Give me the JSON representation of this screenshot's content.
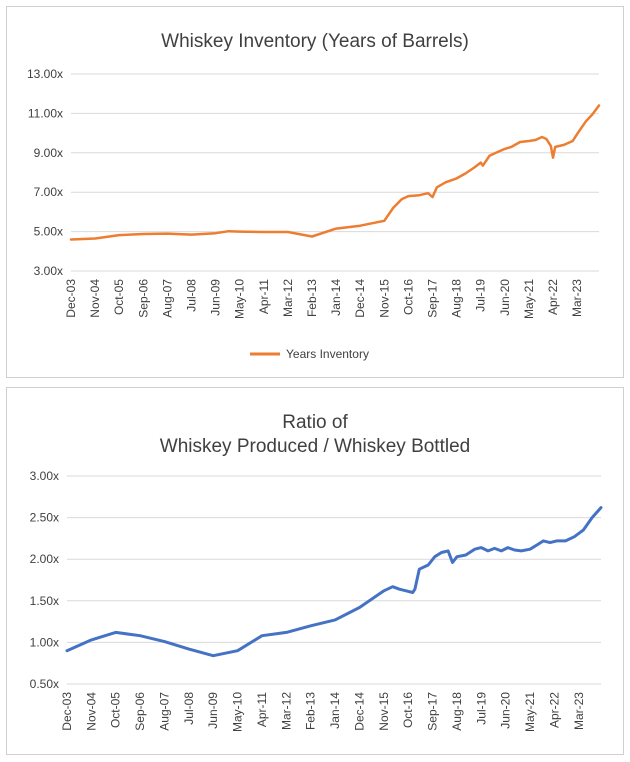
{
  "chart_data": [
    {
      "type": "line",
      "title": "Whiskey Inventory (Years of Barrels)",
      "xlabel": "",
      "ylabel": "",
      "ylim": [
        3.0,
        13.0
      ],
      "yticks": [
        "3.00x",
        "5.00x",
        "7.00x",
        "9.00x",
        "11.00x",
        "13.00x"
      ],
      "yvalues": [
        3,
        5,
        7,
        9,
        11,
        13
      ],
      "x_ticks": [
        "Dec-03",
        "Nov-04",
        "Oct-05",
        "Sep-06",
        "Aug-07",
        "Jul-08",
        "Jun-09",
        "May-10",
        "Apr-11",
        "Mar-12",
        "Feb-13",
        "Jan-14",
        "Dec-14",
        "Nov-15",
        "Oct-16",
        "Sep-17",
        "Aug-18",
        "Jul-19",
        "Jun-20",
        "May-21",
        "Apr-22",
        "Mar-23"
      ],
      "grid": true,
      "legend_position": "bottom",
      "color": "#ED7D31",
      "series": [
        {
          "name": "Years Inventory",
          "points": [
            [
              "2003-12",
              4.6
            ],
            [
              "2004-11",
              4.65
            ],
            [
              "2005-10",
              4.82
            ],
            [
              "2006-09",
              4.88
            ],
            [
              "2007-08",
              4.9
            ],
            [
              "2008-07",
              4.85
            ],
            [
              "2009-06",
              4.92
            ],
            [
              "2009-12",
              5.02
            ],
            [
              "2010-05",
              5.0
            ],
            [
              "2011-04",
              4.98
            ],
            [
              "2012-03",
              4.98
            ],
            [
              "2013-02",
              4.75
            ],
            [
              "2014-01",
              5.15
            ],
            [
              "2014-12",
              5.3
            ],
            [
              "2015-11",
              5.55
            ],
            [
              "2016-03",
              6.2
            ],
            [
              "2016-07",
              6.65
            ],
            [
              "2016-10",
              6.8
            ],
            [
              "2017-03",
              6.85
            ],
            [
              "2017-07",
              6.95
            ],
            [
              "2017-09",
              6.75
            ],
            [
              "2017-11",
              7.25
            ],
            [
              "2018-03",
              7.5
            ],
            [
              "2018-08",
              7.7
            ],
            [
              "2018-12",
              7.95
            ],
            [
              "2019-04",
              8.25
            ],
            [
              "2019-07",
              8.5
            ],
            [
              "2019-08",
              8.35
            ],
            [
              "2019-11",
              8.85
            ],
            [
              "2020-03",
              9.05
            ],
            [
              "2020-06",
              9.2
            ],
            [
              "2020-09",
              9.3
            ],
            [
              "2021-01",
              9.55
            ],
            [
              "2021-05",
              9.6
            ],
            [
              "2021-08",
              9.65
            ],
            [
              "2021-11",
              9.8
            ],
            [
              "2022-01",
              9.7
            ],
            [
              "2022-03",
              9.35
            ],
            [
              "2022-04",
              8.75
            ],
            [
              "2022-05",
              9.3
            ],
            [
              "2022-09",
              9.4
            ],
            [
              "2023-01",
              9.6
            ],
            [
              "2023-03",
              9.95
            ],
            [
              "2023-07",
              10.6
            ],
            [
              "2023-10",
              10.95
            ],
            [
              "2024-01",
              11.4
            ]
          ]
        }
      ]
    },
    {
      "type": "line",
      "title": "Ratio of\nWhiskey Produced / Whiskey Bottled",
      "title_lines": [
        "Ratio of",
        "Whiskey Produced / Whiskey Bottled"
      ],
      "xlabel": "",
      "ylabel": "",
      "ylim": [
        0.5,
        3.0
      ],
      "yticks": [
        "0.50x",
        "1.00x",
        "1.50x",
        "2.00x",
        "2.50x",
        "3.00x"
      ],
      "yvalues": [
        0.5,
        1.0,
        1.5,
        2.0,
        2.5,
        3.0
      ],
      "x_ticks": [
        "Dec-03",
        "Nov-04",
        "Oct-05",
        "Sep-06",
        "Aug-07",
        "Jul-08",
        "Jun-09",
        "May-10",
        "Apr-11",
        "Mar-12",
        "Feb-13",
        "Jan-14",
        "Dec-14",
        "Nov-15",
        "Oct-16",
        "Sep-17",
        "Aug-18",
        "Jul-19",
        "Jun-20",
        "May-21",
        "Apr-22",
        "Mar-23"
      ],
      "grid": true,
      "color": "#4472C4",
      "series": [
        {
          "points": [
            [
              "2003-12",
              0.9
            ],
            [
              "2004-11",
              1.03
            ],
            [
              "2005-10",
              1.12
            ],
            [
              "2006-09",
              1.08
            ],
            [
              "2007-08",
              1.01
            ],
            [
              "2008-07",
              0.92
            ],
            [
              "2009-06",
              0.84
            ],
            [
              "2010-05",
              0.9
            ],
            [
              "2011-04",
              1.08
            ],
            [
              "2012-03",
              1.12
            ],
            [
              "2013-02",
              1.2
            ],
            [
              "2014-01",
              1.27
            ],
            [
              "2014-12",
              1.42
            ],
            [
              "2015-11",
              1.62
            ],
            [
              "2016-03",
              1.67
            ],
            [
              "2016-06",
              1.64
            ],
            [
              "2016-09",
              1.62
            ],
            [
              "2016-12",
              1.6
            ],
            [
              "2017-01",
              1.64
            ],
            [
              "2017-03",
              1.88
            ],
            [
              "2017-07",
              1.93
            ],
            [
              "2017-10",
              2.03
            ],
            [
              "2018-01",
              2.08
            ],
            [
              "2018-04",
              2.1
            ],
            [
              "2018-06",
              1.96
            ],
            [
              "2018-08",
              2.03
            ],
            [
              "2018-12",
              2.05
            ],
            [
              "2019-04",
              2.12
            ],
            [
              "2019-07",
              2.14
            ],
            [
              "2019-10",
              2.1
            ],
            [
              "2020-01",
              2.13
            ],
            [
              "2020-04",
              2.1
            ],
            [
              "2020-07",
              2.14
            ],
            [
              "2020-10",
              2.11
            ],
            [
              "2021-01",
              2.1
            ],
            [
              "2021-05",
              2.12
            ],
            [
              "2021-08",
              2.17
            ],
            [
              "2021-11",
              2.22
            ],
            [
              "2022-02",
              2.2
            ],
            [
              "2022-05",
              2.22
            ],
            [
              "2022-09",
              2.22
            ],
            [
              "2023-01",
              2.27
            ],
            [
              "2023-05",
              2.35
            ],
            [
              "2023-09",
              2.5
            ],
            [
              "2024-01",
              2.62
            ]
          ]
        }
      ]
    }
  ]
}
